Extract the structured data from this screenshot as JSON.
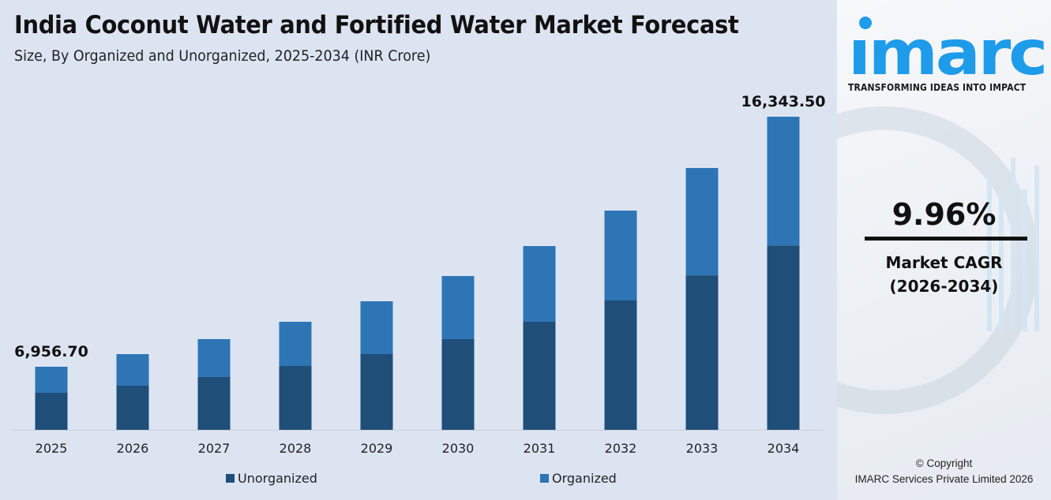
{
  "header": {
    "title": "India Coconut Water and Fortified Water Market Forecast",
    "subtitle": "Size, By Organized and Unorganized, 2025-2034 (INR Crore)"
  },
  "chart_data": {
    "type": "bar",
    "stacked": true,
    "title": "India Coconut Water and Fortified Water Market Forecast",
    "subtitle": "Size, By Organized and Unorganized, 2025-2034 (INR Crore)",
    "categories": [
      "2025",
      "2026",
      "2027",
      "2028",
      "2029",
      "2030",
      "2031",
      "2032",
      "2033",
      "2034"
    ],
    "series": [
      {
        "name": "Unorganized",
        "color": "#1f4e79",
        "values": [
          4087,
          4334,
          4660,
          5110,
          5545,
          6113,
          6754,
          7563,
          8507,
          9626
        ]
      },
      {
        "name": "Organized",
        "color": "#2e75b6",
        "values": [
          2870,
          3096,
          3333,
          3534,
          3869,
          4248,
          4733,
          5256,
          5911,
          6718
        ]
      }
    ],
    "totals": [
      6956.7,
      7430,
      7993,
      8644,
      9414,
      10361,
      11487,
      12819,
      14418,
      16343.5
    ],
    "data_labels": [
      {
        "category": "2025",
        "text": "6,956.70"
      },
      {
        "category": "2034",
        "text": "16,343.50"
      }
    ],
    "xlabel": "",
    "ylabel": "",
    "y_axis_visible": false,
    "grid": false,
    "legend": "bottom"
  },
  "sidebar": {
    "logo_text": "imarc",
    "tagline": "TRANSFORMING IDEAS INTO IMPACT",
    "cagr_value": "9.96%",
    "cagr_label": "Market CAGR",
    "cagr_period": "(2026-2034)",
    "copyright": "© Copyright",
    "company": "IMARC Services Private Limited 2026",
    "brand_color": "#1e9be9"
  }
}
